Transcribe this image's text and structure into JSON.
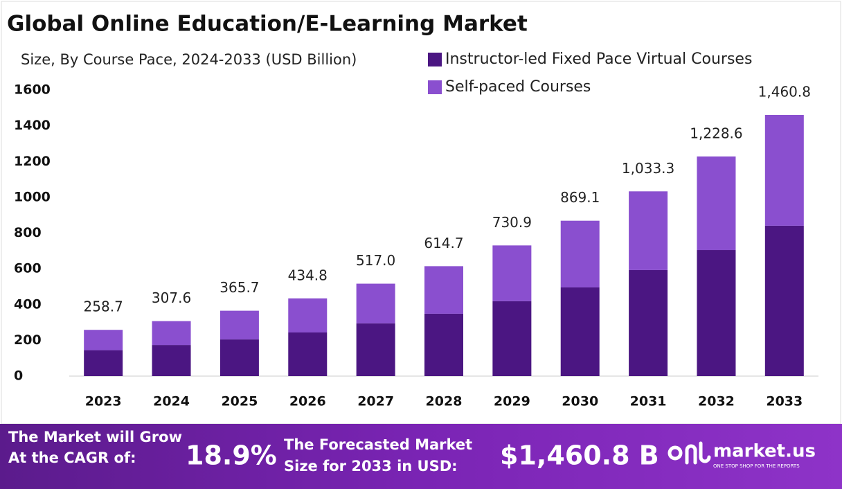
{
  "chart_data": {
    "type": "stacked_bar",
    "title": "Global Online Education/E-Learning Market",
    "subtitle": "Size, By Course Pace, 2024-2033 (USD Billion)",
    "categories": [
      "2023",
      "2024",
      "2025",
      "2026",
      "2027",
      "2028",
      "2029",
      "2030",
      "2031",
      "2032",
      "2033"
    ],
    "series": [
      {
        "name": "Instructor-led Fixed Pace Virtual Courses",
        "color": "#4b1682",
        "values": [
          145,
          174,
          205,
          244,
          295,
          349,
          419,
          496,
          593,
          705,
          841
        ]
      },
      {
        "name": "Self-paced Courses",
        "color": "#8a4fcf",
        "values": [
          113.7,
          133.6,
          160.7,
          190.8,
          222.0,
          265.7,
          311.9,
          373.1,
          440.3,
          523.6,
          619.8
        ]
      }
    ],
    "totals": {
      "values": [
        258.7,
        307.6,
        365.7,
        434.8,
        517.0,
        614.7,
        730.9,
        869.1,
        1033.3,
        1228.6,
        1460.8
      ],
      "value_labels": [
        "258.7",
        "307.6",
        "365.7",
        "434.8",
        "517.0",
        "614.7",
        "730.9",
        "869.1",
        "1,033.3",
        "1,228.6",
        "1,460.8"
      ]
    },
    "ylim": [
      0,
      1600
    ],
    "yticks": [
      0,
      200,
      400,
      600,
      800,
      1000,
      1200,
      1400,
      1600
    ],
    "grid": false,
    "legend": "top-right"
  },
  "footer": {
    "cagr_label": [
      "The Market will Grow",
      "At the CAGR of:"
    ],
    "cagr": "18.9%",
    "forecast_label": [
      "The Forecasted Market",
      "Size for 2033 in USD:"
    ],
    "forecast": "$1,460.8 B",
    "brand": "market.us",
    "tagline": "ONE STOP SHOP FOR THE REPORTS"
  }
}
